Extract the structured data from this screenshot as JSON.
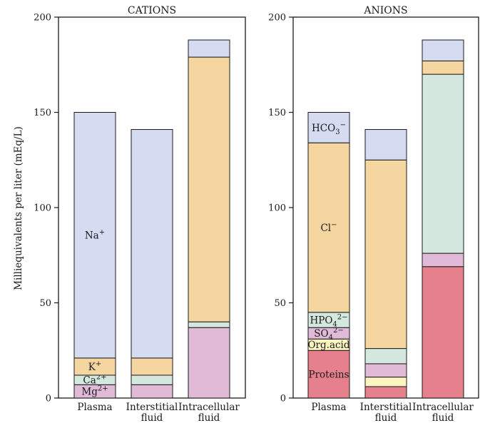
{
  "ylabel": "Milliequivalents per liter (mEq/L)",
  "chart_data": [
    {
      "type": "stacked-bar",
      "title": "CATIONS",
      "ylim": [
        0,
        200
      ],
      "yticks": [
        0,
        50,
        100,
        150,
        200
      ],
      "ylabel": "Milliequivalents per liter (mEq/L)",
      "categories": [
        [
          "Plasma"
        ],
        [
          "Interstitial",
          "fluid"
        ],
        [
          "Intracellular",
          "fluid"
        ]
      ],
      "stacks": [
        [
          {
            "value": 7,
            "color": "#e0bad6",
            "label": "Mg2+",
            "base": "Mg",
            "sup": "2+"
          },
          {
            "value": 5,
            "color": "#d5e8df",
            "label": "Ca2+",
            "base": "Ca",
            "sup": "2+"
          },
          {
            "value": 9,
            "color": "#f5d6a0",
            "label": "K+",
            "base": "K",
            "sup": "+"
          },
          {
            "value": 129,
            "color": "#d5dcf2",
            "label": "Na+",
            "base": "Na",
            "sup": "+"
          }
        ],
        [
          {
            "value": 7,
            "color": "#e0bad6"
          },
          {
            "value": 5,
            "color": "#d5e8df"
          },
          {
            "value": 9,
            "color": "#f5d6a0"
          },
          {
            "value": 120,
            "color": "#d5dcf2"
          }
        ],
        [
          {
            "value": 37,
            "color": "#e0bad6"
          },
          {
            "value": 3,
            "color": "#d5e8df"
          },
          {
            "value": 139,
            "color": "#f5d6a0"
          },
          {
            "value": 9,
            "color": "#d5dcf2"
          }
        ]
      ]
    },
    {
      "type": "stacked-bar",
      "title": "ANIONS",
      "ylim": [
        0,
        200
      ],
      "yticks": [
        0,
        50,
        100,
        150,
        200
      ],
      "categories": [
        [
          "Plasma"
        ],
        [
          "Interstitial",
          "fluid"
        ],
        [
          "Intracellular",
          "fluid"
        ]
      ],
      "stacks": [
        [
          {
            "value": 25,
            "color": "#e5808c",
            "label": "Proteins",
            "base": "Proteins"
          },
          {
            "value": 6,
            "color": "#fcf5c0",
            "label": "Org.acid",
            "base": "Org.acid"
          },
          {
            "value": 6,
            "color": "#e0bad6",
            "label": "SO42−",
            "base": "SO",
            "sub": "4",
            "sup": "2−"
          },
          {
            "value": 8,
            "color": "#d5e8df",
            "label": "HPO42−",
            "base": "HPO",
            "sub": "4",
            "sup": "2−"
          },
          {
            "value": 89,
            "color": "#f5d6a0",
            "label": "Cl−",
            "base": "Cl",
            "sup": "−"
          },
          {
            "value": 16,
            "color": "#d5dcf2",
            "label": "HCO3−",
            "base": "HCO",
            "sub": "3",
            "sup": "−"
          }
        ],
        [
          {
            "value": 6,
            "color": "#e5808c"
          },
          {
            "value": 5,
            "color": "#fcf5c0"
          },
          {
            "value": 7,
            "color": "#e0bad6"
          },
          {
            "value": 8,
            "color": "#d5e8df"
          },
          {
            "value": 99,
            "color": "#f5d6a0"
          },
          {
            "value": 16,
            "color": "#d5dcf2"
          }
        ],
        [
          {
            "value": 69,
            "color": "#e5808c"
          },
          {
            "value": 7,
            "color": "#e0bad6"
          },
          {
            "value": 94,
            "color": "#d5e8df"
          },
          {
            "value": 7,
            "color": "#f5d6a0"
          },
          {
            "value": 11,
            "color": "#d5dcf2"
          }
        ]
      ]
    }
  ]
}
